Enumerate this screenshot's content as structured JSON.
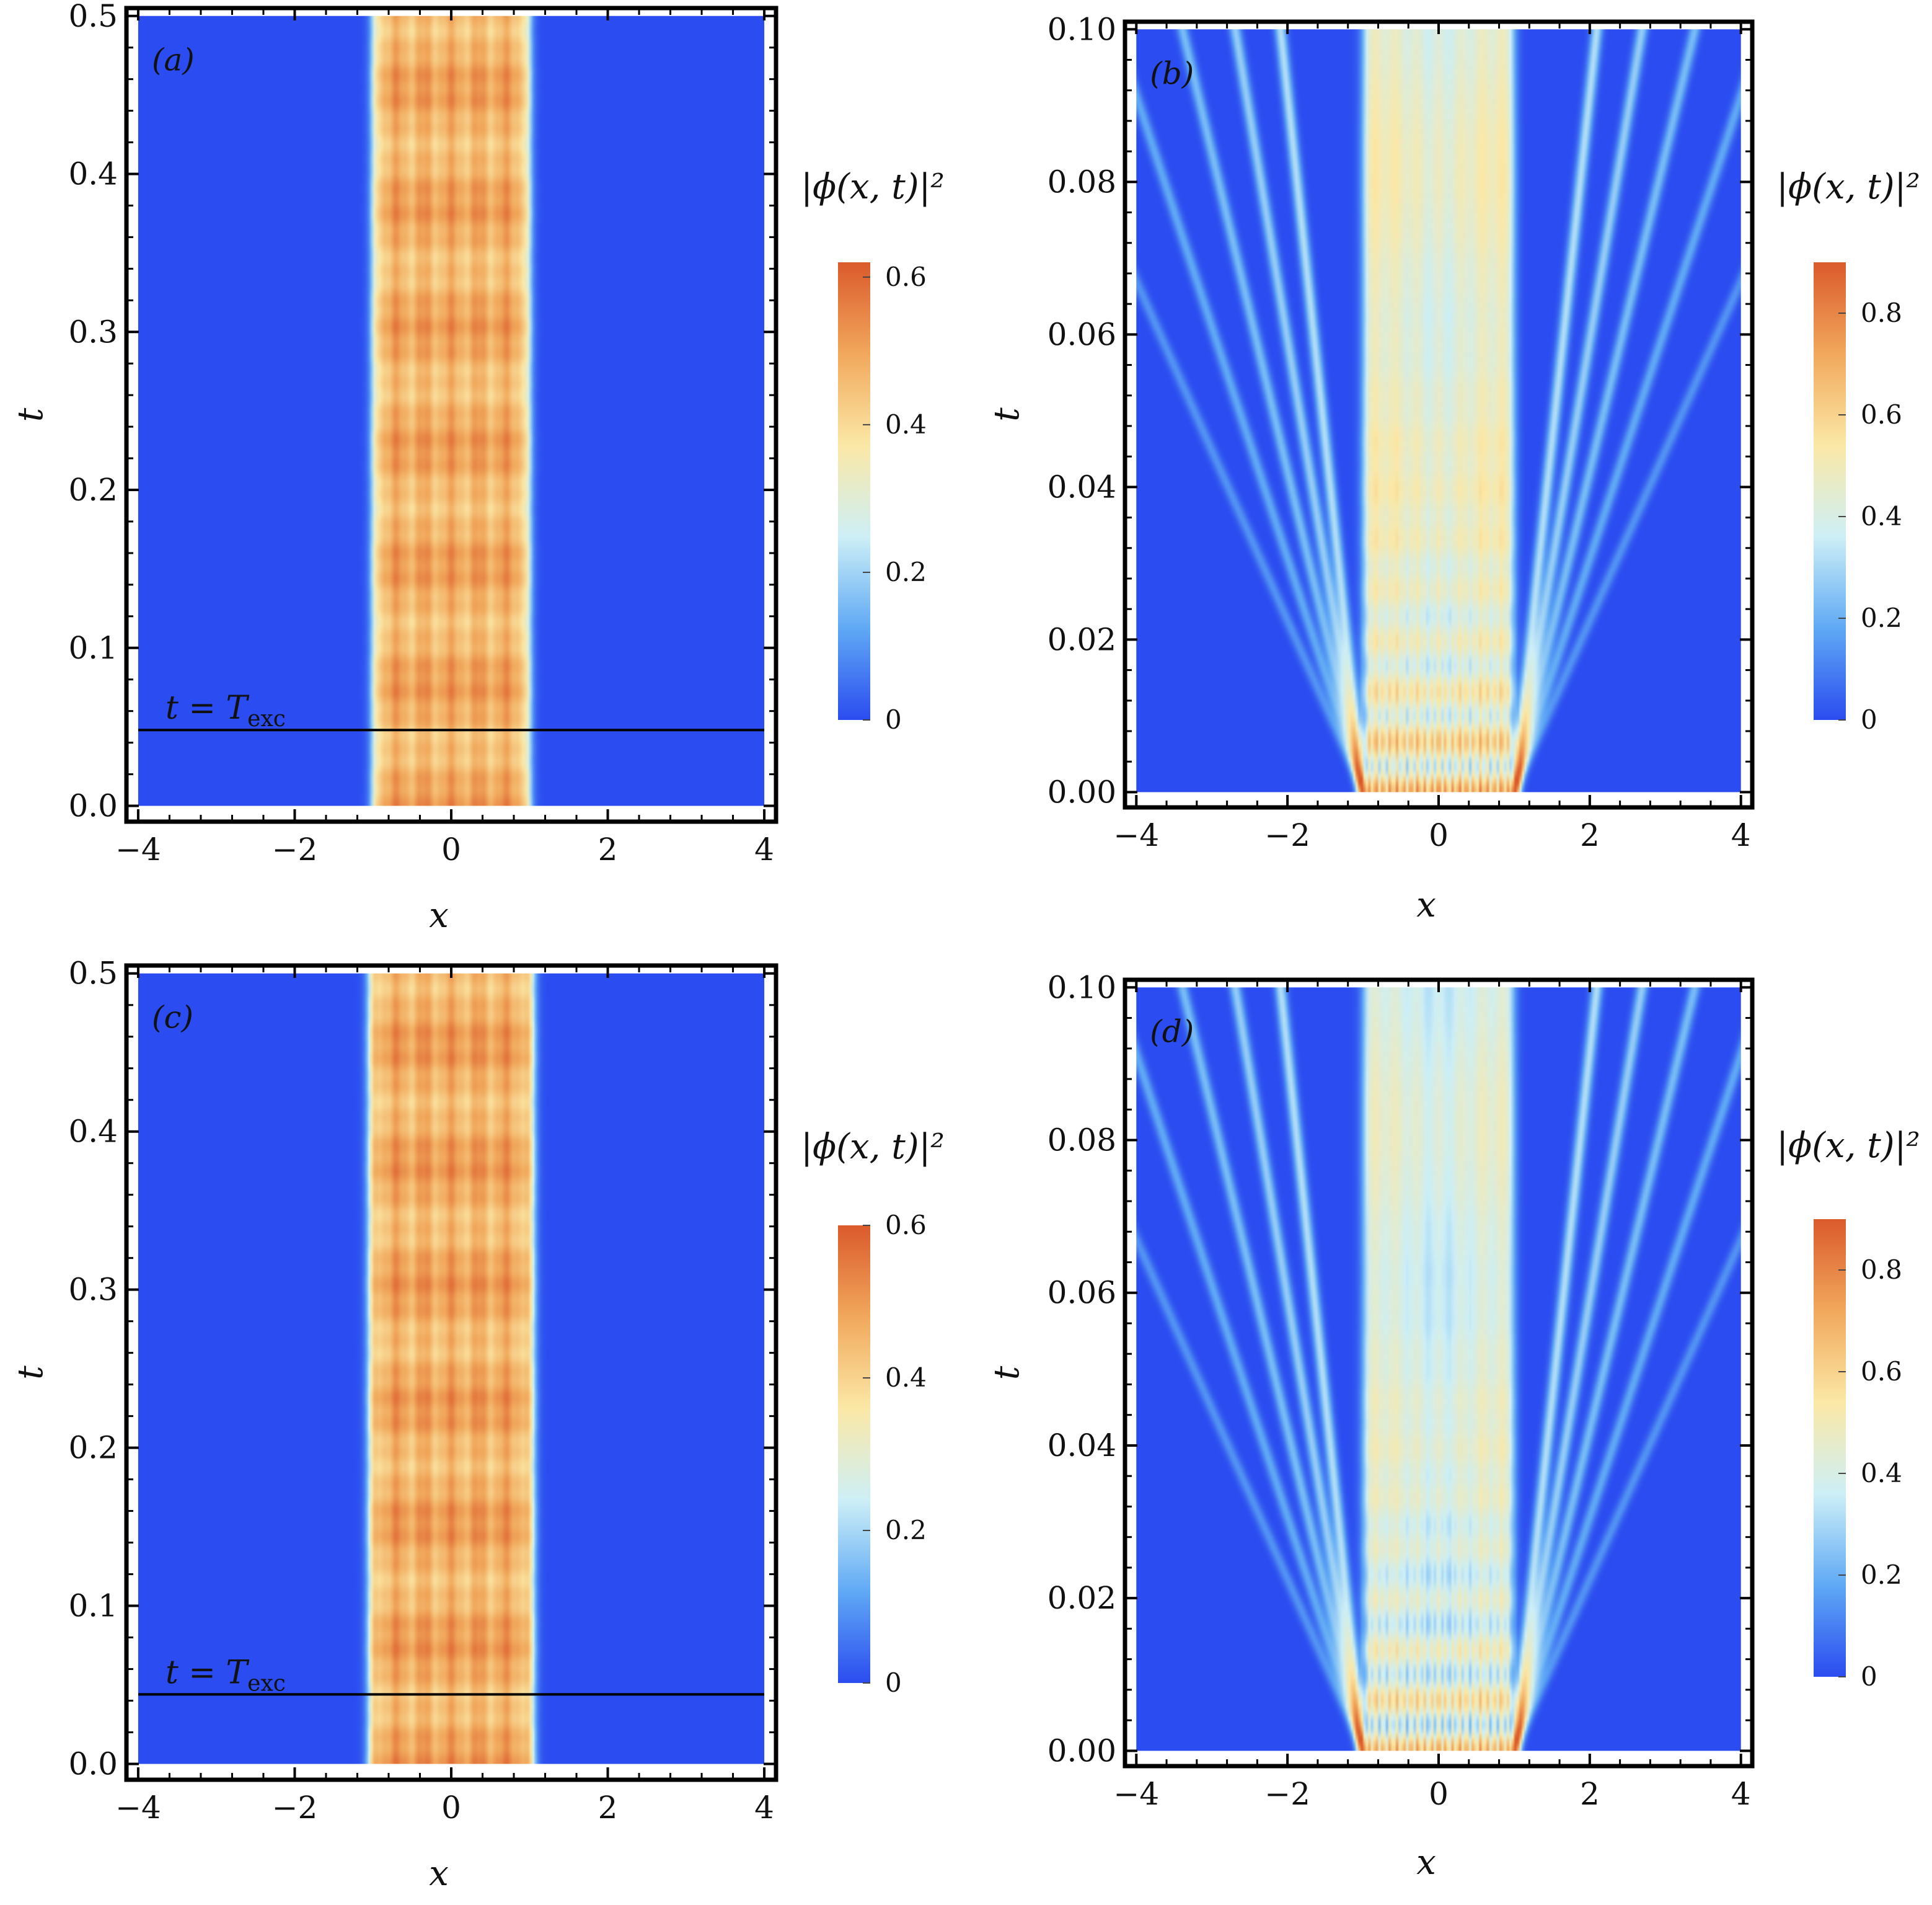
{
  "chart_data": [
    {
      "type": "heatmap",
      "panel_label": "(a)",
      "xlabel": "x",
      "ylabel": "t",
      "xlim": [
        -4.15,
        4.15
      ],
      "ylim": [
        -0.01,
        0.505
      ],
      "data_extent": {
        "x": [
          -4,
          4
        ],
        "t": [
          0,
          0.5
        ]
      },
      "xticks": [
        -4,
        -2,
        0,
        2,
        4
      ],
      "xtick_labels": [
        "−4",
        "−2",
        "0",
        "2",
        "4"
      ],
      "yticks": [
        0.0,
        0.1,
        0.2,
        0.3,
        0.4,
        0.5
      ],
      "ytick_labels": [
        "0.0",
        "0.1",
        "0.2",
        "0.3",
        "0.4",
        "0.5"
      ],
      "colorbar": {
        "title": "|ϕ(x, t)|²",
        "range": [
          0,
          0.62
        ],
        "ticks": [
          0,
          0.2,
          0.4,
          0.6
        ],
        "tick_labels": [
          "0",
          "0.2",
          "0.4",
          "0.6"
        ]
      },
      "annotation": {
        "label": "t = T",
        "subscript": "exc",
        "t_value": 0.048
      },
      "field": {
        "regime": "confined",
        "width": 1.0,
        "mean_density": 0.48,
        "peak_density": 0.58
      }
    },
    {
      "type": "heatmap",
      "panel_label": "(b)",
      "xlabel": "x",
      "ylabel": "t",
      "xlim": [
        -4.15,
        4.15
      ],
      "ylim": [
        -0.002,
        0.101
      ],
      "data_extent": {
        "x": [
          -4,
          4
        ],
        "t": [
          0,
          0.1
        ]
      },
      "xticks": [
        -4,
        -2,
        0,
        2,
        4
      ],
      "xtick_labels": [
        "−4",
        "−2",
        "0",
        "2",
        "4"
      ],
      "yticks": [
        0.0,
        0.02,
        0.04,
        0.06,
        0.08,
        0.1
      ],
      "ytick_labels": [
        "0.00",
        "0.02",
        "0.04",
        "0.06",
        "0.08",
        "0.10"
      ],
      "colorbar": {
        "title": "|ϕ(x, t)|²",
        "range": [
          0,
          0.9
        ],
        "ticks": [
          0,
          0.2,
          0.4,
          0.6,
          0.8
        ],
        "tick_labels": [
          "0",
          "0.2",
          "0.4",
          "0.6",
          "0.8"
        ]
      },
      "field": {
        "regime": "emitting",
        "width": 1.0,
        "mean_density": 0.5,
        "peak_density": 0.85
      }
    },
    {
      "type": "heatmap",
      "panel_label": "(c)",
      "xlabel": "x",
      "ylabel": "t",
      "xlim": [
        -4.15,
        4.15
      ],
      "ylim": [
        -0.01,
        0.505
      ],
      "data_extent": {
        "x": [
          -4,
          4
        ],
        "t": [
          0,
          0.5
        ]
      },
      "xticks": [
        -4,
        -2,
        0,
        2,
        4
      ],
      "xtick_labels": [
        "−4",
        "−2",
        "0",
        "2",
        "4"
      ],
      "yticks": [
        0.0,
        0.1,
        0.2,
        0.3,
        0.4,
        0.5
      ],
      "ytick_labels": [
        "0.0",
        "0.1",
        "0.2",
        "0.3",
        "0.4",
        "0.5"
      ],
      "colorbar": {
        "title": "|ϕ(x, t)|²",
        "range": [
          0,
          0.6
        ],
        "ticks": [
          0,
          0.2,
          0.4,
          0.6
        ],
        "tick_labels": [
          "0",
          "0.2",
          "0.4",
          "0.6"
        ]
      },
      "annotation": {
        "label": "t = T",
        "subscript": "exc",
        "t_value": 0.044
      },
      "field": {
        "regime": "confined",
        "width": 1.05,
        "mean_density": 0.47,
        "peak_density": 0.57
      }
    },
    {
      "type": "heatmap",
      "panel_label": "(d)",
      "xlabel": "x",
      "ylabel": "t",
      "xlim": [
        -4.15,
        4.15
      ],
      "ylim": [
        -0.002,
        0.101
      ],
      "data_extent": {
        "x": [
          -4,
          4
        ],
        "t": [
          0,
          0.1
        ]
      },
      "xticks": [
        -4,
        -2,
        0,
        2,
        4
      ],
      "xtick_labels": [
        "−4",
        "−2",
        "0",
        "2",
        "4"
      ],
      "yticks": [
        0.0,
        0.02,
        0.04,
        0.06,
        0.08,
        0.1
      ],
      "ytick_labels": [
        "0.00",
        "0.02",
        "0.04",
        "0.06",
        "0.08",
        "0.10"
      ],
      "colorbar": {
        "title": "|ϕ(x, t)|²",
        "range": [
          0,
          0.9
        ],
        "ticks": [
          0,
          0.2,
          0.4,
          0.6,
          0.8
        ],
        "tick_labels": [
          "0",
          "0.2",
          "0.4",
          "0.6",
          "0.8"
        ]
      },
      "field": {
        "regime": "emitting",
        "width": 1.0,
        "mean_density": 0.45,
        "peak_density": 0.85
      }
    }
  ],
  "colormap": [
    "#2b4cf0",
    "#5fa9f5",
    "#cdeff6",
    "#fbe8a6",
    "#f1a85c",
    "#db5a2c"
  ]
}
